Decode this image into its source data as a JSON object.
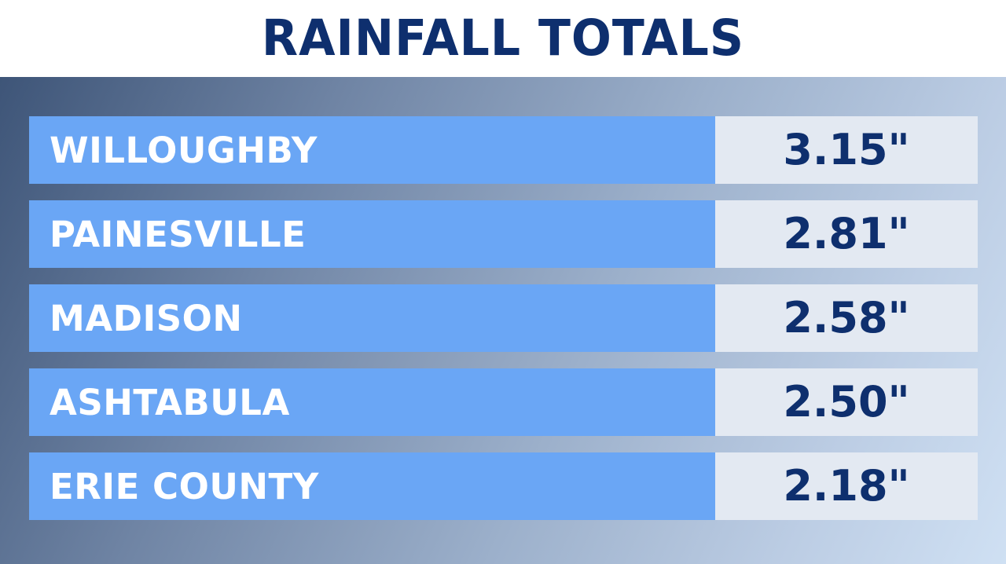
{
  "chart_data": {
    "type": "table",
    "title": "RAINFALL TOTALS",
    "columns": [
      "",
      ""
    ],
    "rows": [
      {
        "location": "WILLOUGHBY",
        "rainfall_in": 3.15,
        "value_label": "3.15\""
      },
      {
        "location": "PAINESVILLE",
        "rainfall_in": 2.81,
        "value_label": "2.81\""
      },
      {
        "location": "MADISON",
        "rainfall_in": 2.58,
        "value_label": "2.58\""
      },
      {
        "location": "ASHTABULA",
        "rainfall_in": 2.5,
        "value_label": "2.50\""
      },
      {
        "location": "ERIE COUNTY",
        "rainfall_in": 2.18,
        "value_label": "2.18\""
      }
    ]
  },
  "colors": {
    "title_text": "#0e2f6e",
    "name_cell": "#6aa6f5",
    "value_cell": "#e3e9f2",
    "value_text": "#0e2f6e",
    "name_text": "#ffffff"
  }
}
